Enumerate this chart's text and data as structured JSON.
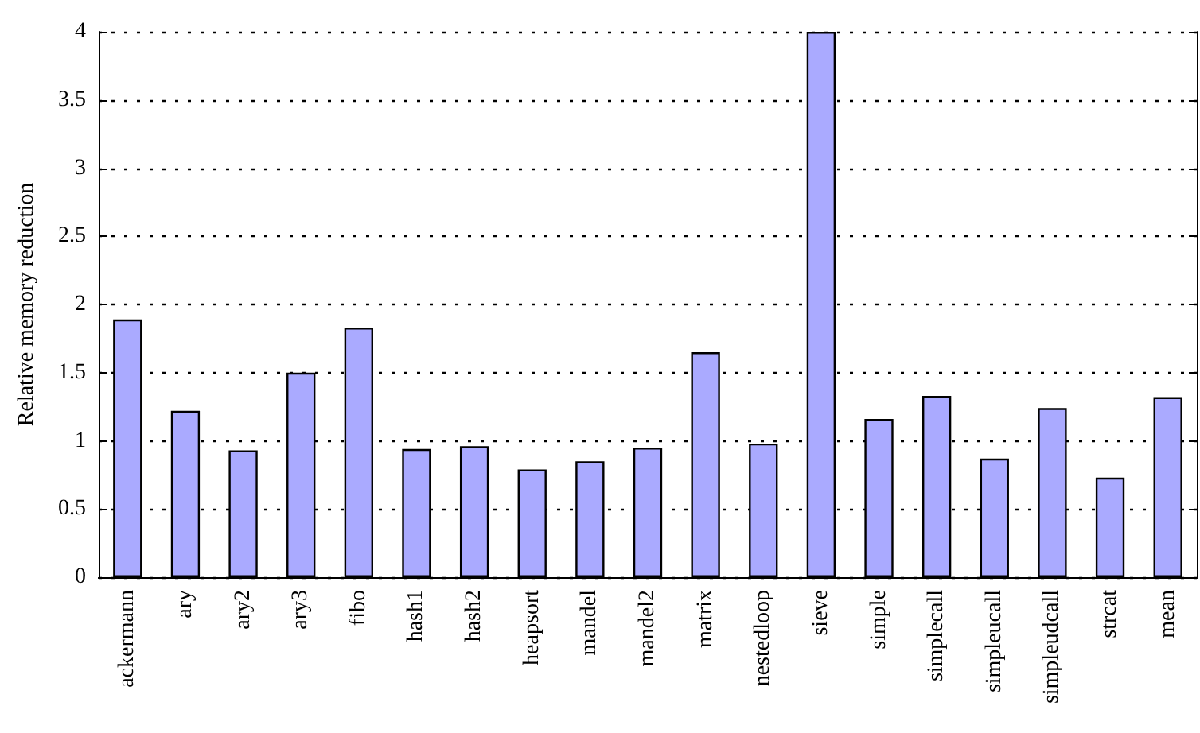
{
  "chart_data": {
    "type": "bar",
    "ylabel": "Relative memory reduction",
    "categories": [
      "ackermann",
      "ary",
      "ary2",
      "ary3",
      "fibo",
      "hash1",
      "hash2",
      "heapsort",
      "mandel",
      "mandel2",
      "matrix",
      "nestedloop",
      "sieve",
      "simple",
      "simplecall",
      "simpleucall",
      "simpleudcall",
      "strcat",
      "mean"
    ],
    "values": [
      1.89,
      1.22,
      0.93,
      1.5,
      1.83,
      0.94,
      0.96,
      0.79,
      0.85,
      0.95,
      1.65,
      0.98,
      4.0,
      1.16,
      1.33,
      0.87,
      1.24,
      0.73,
      1.32
    ],
    "color": "#aaaaff",
    "ylim": [
      0,
      4
    ],
    "yticks": [
      0,
      0.5,
      1,
      1.5,
      2,
      2.5,
      3,
      3.5,
      4
    ],
    "grid": "y"
  }
}
